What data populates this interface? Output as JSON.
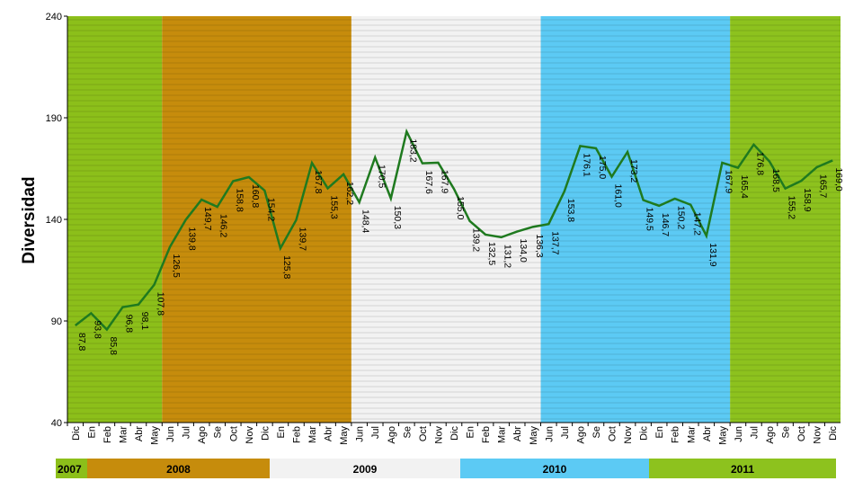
{
  "chart_data": {
    "type": "line",
    "y_label": "Diversidad",
    "categories": [
      "Dic",
      "En",
      "Feb",
      "Mar",
      "Abr",
      "May",
      "Jun",
      "Jul",
      "Ago",
      "Se",
      "Oct",
      "Nov",
      "Dic",
      "En",
      "Feb",
      "Mar",
      "Abr",
      "May",
      "Jun",
      "Jul",
      "Ago",
      "Se",
      "Oct",
      "Nov",
      "Dic",
      "En",
      "Feb",
      "Mar",
      "Abr",
      "May",
      "Jun",
      "Jul",
      "Ago",
      "Se",
      "Oct",
      "Nov",
      "Dic",
      "En",
      "Feb",
      "Mar",
      "Abr",
      "May",
      "Jun",
      "Jul",
      "Ago",
      "Se",
      "Oct",
      "Nov",
      "Dic"
    ],
    "series": [
      {
        "color": "#1f7a1f",
        "values": [
          87.8,
          93.8,
          85.8,
          96.8,
          98.1,
          107.8,
          126.5,
          139.8,
          149.7,
          146.2,
          158.8,
          160.8,
          154.2,
          125.8,
          139.7,
          167.8,
          155.3,
          162.2,
          148.4,
          170.5,
          150.3,
          183.2,
          167.6,
          167.9,
          155.0,
          139.2,
          132.5,
          131.2,
          134.0,
          136.3,
          137.7,
          153.8,
          176.1,
          175.0,
          161.0,
          173.2,
          149.5,
          146.7,
          150.2,
          147.2,
          131.9,
          167.9,
          165.4,
          176.8,
          168.5,
          155.2,
          158.9,
          165.7,
          169.0
        ],
        "value_labels": [
          "87,8",
          "93,8",
          "85,8",
          "96,8",
          "98,1",
          "107,8",
          "126,5",
          "139,8",
          "149,7",
          "146,2",
          "158,8",
          "160,8",
          "154,2",
          "125,8",
          "139,7",
          "167,8",
          "155,3",
          "162,2",
          "148,4",
          "170,5",
          "150,3",
          "183,2",
          "167,6",
          "167,9",
          "155,0",
          "139,2",
          "132,5",
          "131,2",
          "134,0",
          "136,3",
          "137,7",
          "153,8",
          "176,1",
          "175,0",
          "161,0",
          "173,2",
          "149,5",
          "146,7",
          "150,2",
          "147,2",
          "131,9",
          "167,9",
          "165,4",
          "176,8",
          "168,5",
          "155,2",
          "158,9",
          "165,7",
          "169,0"
        ]
      }
    ],
    "ylim": [
      40,
      240
    ],
    "yticks": [
      40,
      90,
      140,
      190,
      240
    ],
    "background_colors": [
      "#8cbf1a",
      "#c68c0c",
      "#f2f2f2",
      "#5ccaf4",
      "#8dc21e"
    ],
    "years": [
      {
        "label": "2007",
        "color": "#8cbf1a"
      },
      {
        "label": "2008",
        "color": "#c68c0c"
      },
      {
        "label": "2009",
        "color": "#f2f2f2"
      },
      {
        "label": "2010",
        "color": "#5ccaf4"
      },
      {
        "label": "2011",
        "color": "#8dc21e"
      }
    ]
  }
}
